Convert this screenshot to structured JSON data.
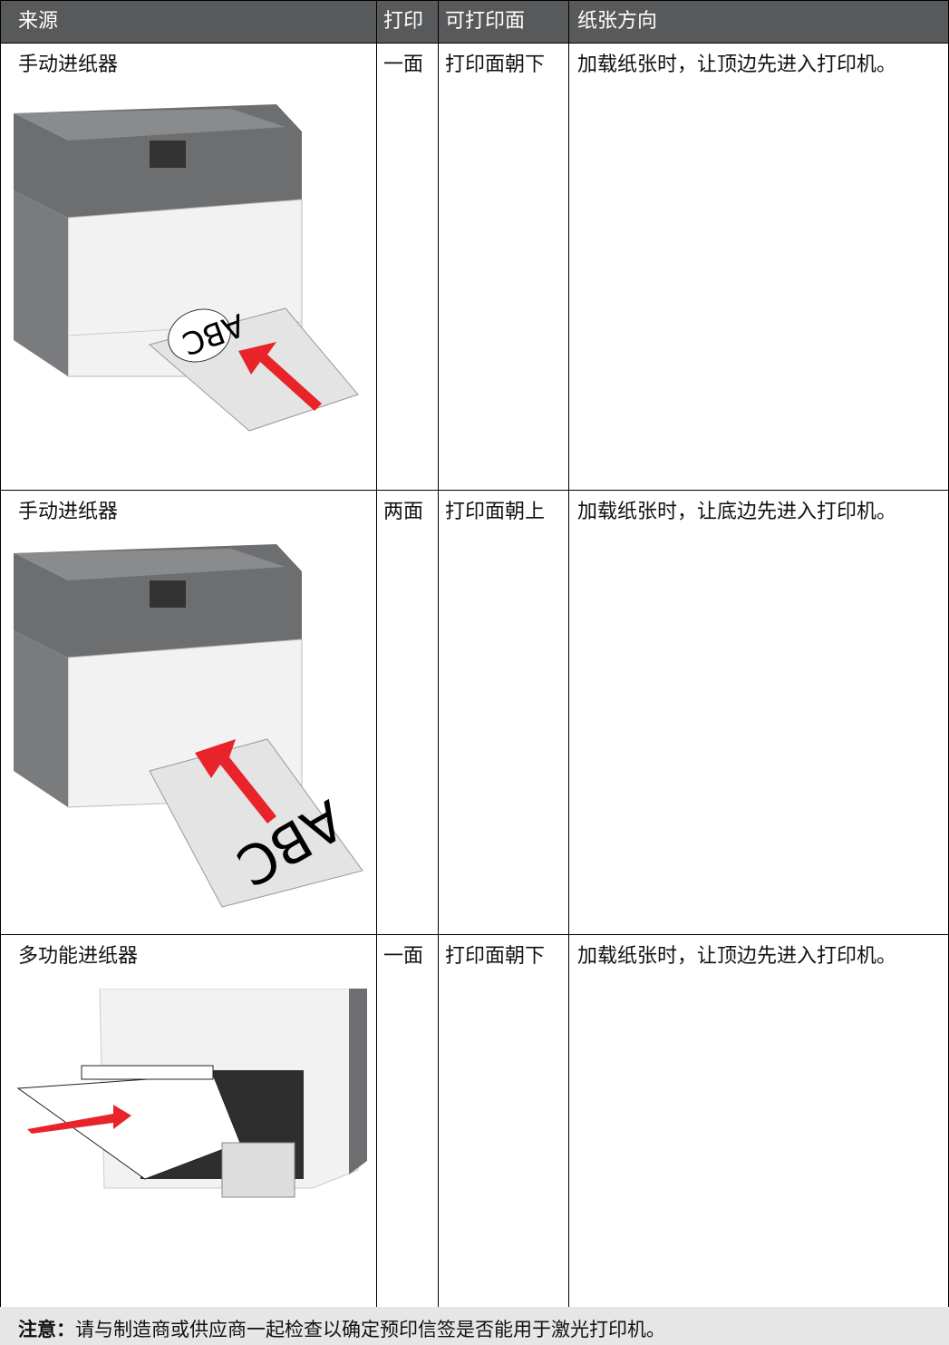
{
  "table": {
    "header": [
      "来源",
      "打印",
      "可打印面",
      "纸张方向"
    ],
    "rows": [
      [
        "手动进纸器",
        "一面",
        "打印面朝下",
        "加载纸张时，让顶边先进入打印机。"
      ],
      [
        "手动进纸器",
        "两面",
        "打印面朝上",
        "加载纸张时，让底边先进入打印机。"
      ],
      [
        "多功能进纸器",
        "一面",
        "打印面朝下",
        "加载纸张时，让顶边先进入打印机。"
      ]
    ]
  },
  "illustrations": [
    "ABC",
    "ABC"
  ],
  "note": {
    "label": "注意：",
    "text": "请与制造商或供应商一起检查以确定预印信签是否能用于激光打印机。"
  }
}
